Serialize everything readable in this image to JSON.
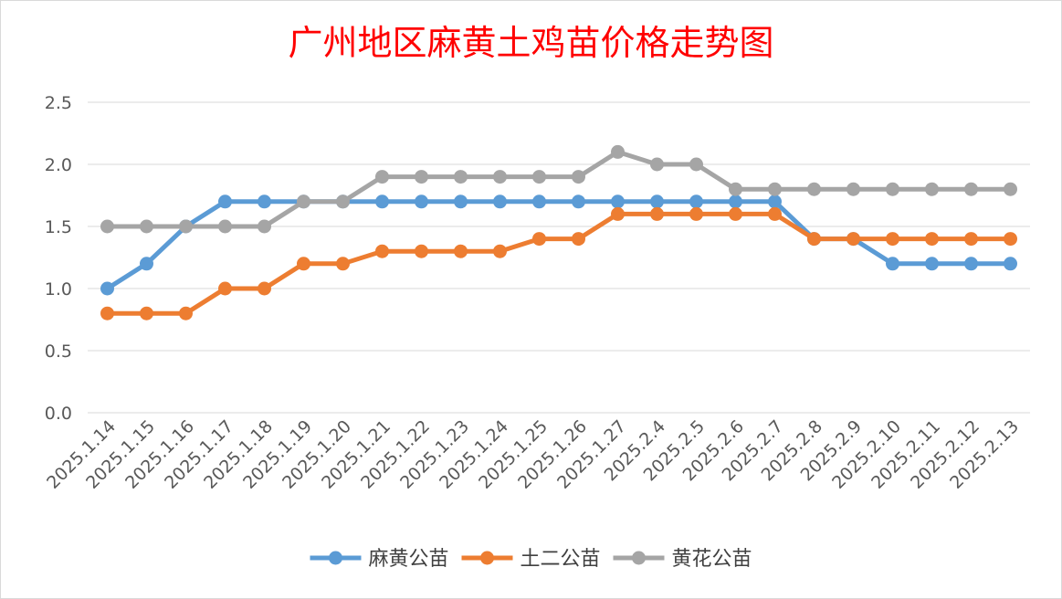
{
  "chart_data": {
    "type": "line",
    "title": "广州地区麻黄土鸡苗价格走势图",
    "xlabel": "",
    "ylabel": "",
    "ylim": [
      0,
      2.5
    ],
    "yticks": [
      "0.0",
      "0.5",
      "1.0",
      "1.5",
      "2.0",
      "2.5"
    ],
    "grid": true,
    "legend_position": "bottom",
    "categories": [
      "2025.1.14",
      "2025.1.15",
      "2025.1.16",
      "2025.1.17",
      "2025.1.18",
      "2025.1.19",
      "2025.1.20",
      "2025.1.21",
      "2025.1.22",
      "2025.1.23",
      "2025.1.24",
      "2025.1.25",
      "2025.1.26",
      "2025.1.27",
      "2025.2.4",
      "2025.2.5",
      "2025.2.6",
      "2025.2.7",
      "2025.2.8",
      "2025.2.9",
      "2025.2.10",
      "2025.2.11",
      "2025.2.12",
      "2025.2.13"
    ],
    "series": [
      {
        "name": "麻黄公苗",
        "color": "#5b9bd5",
        "values": [
          1.0,
          1.2,
          1.5,
          1.7,
          1.7,
          1.7,
          1.7,
          1.7,
          1.7,
          1.7,
          1.7,
          1.7,
          1.7,
          1.7,
          1.7,
          1.7,
          1.7,
          1.7,
          1.4,
          1.4,
          1.2,
          1.2,
          1.2,
          1.2
        ]
      },
      {
        "name": "土二公苗",
        "color": "#ed7d31",
        "values": [
          0.8,
          0.8,
          0.8,
          1.0,
          1.0,
          1.2,
          1.2,
          1.3,
          1.3,
          1.3,
          1.3,
          1.4,
          1.4,
          1.6,
          1.6,
          1.6,
          1.6,
          1.6,
          1.4,
          1.4,
          1.4,
          1.4,
          1.4,
          1.4
        ]
      },
      {
        "name": "黄花公苗",
        "color": "#a5a5a5",
        "values": [
          1.5,
          1.5,
          1.5,
          1.5,
          1.5,
          1.7,
          1.7,
          1.9,
          1.9,
          1.9,
          1.9,
          1.9,
          1.9,
          2.1,
          2.0,
          2.0,
          1.8,
          1.8,
          1.8,
          1.8,
          1.8,
          1.8,
          1.8,
          1.8
        ]
      }
    ]
  }
}
